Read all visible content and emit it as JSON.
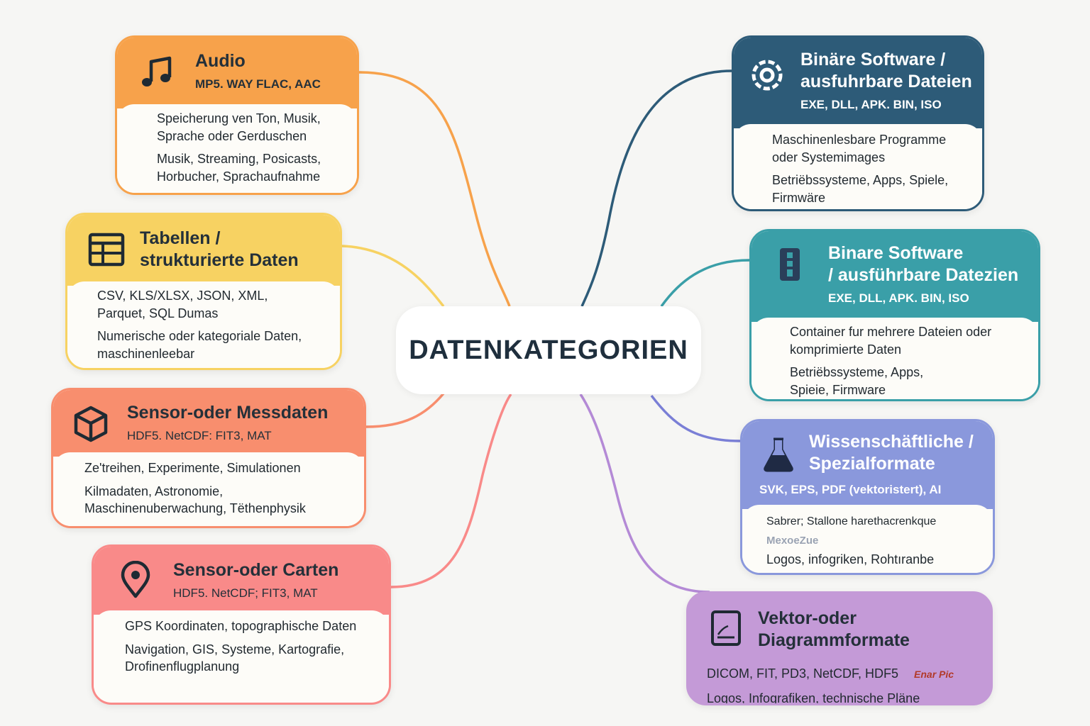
{
  "center": {
    "title": "DATENKATEGORIEN"
  },
  "nodes": {
    "audio": {
      "title": "Audio",
      "formats": "MP5. WAY FLAC, AAC",
      "description": "Speicherung ven Ton, Musik, Sprache oder Gerduschen",
      "examples": "Musik, Streaming, Posicasts, Horbucher, Sprachaufnahme",
      "color": "#f7a24b",
      "icon": "music-note-icon"
    },
    "tables": {
      "title": "Tabellen / strukturierte Daten",
      "title_line1": "Tabellen /",
      "title_line2": "strukturierte Daten",
      "formats": "CSV, KLS/XLSX, JSON, XML, Parquet, SQL Dumas",
      "description": "Numerische oder kategoriale Daten, maschinenleebar",
      "color": "#f7d262",
      "icon": "table-icon"
    },
    "sensor": {
      "title": "Sensor-oder Messdaten",
      "formats": "HDF5. NetCDF: FIT3, MAT",
      "description": "Ze'treihen, Experimente, Simulationen",
      "examples": "Kilmadaten, Astronomie, Maschinenuberwachung, Tëthenphysik",
      "color": "#f88e6e",
      "icon": "cube-icon"
    },
    "geo": {
      "title": "Sensor-oder Carten",
      "formats": "HDF5. NetCDF; FIT3, MAT",
      "description": "GPS Koordinaten, topographische Daten",
      "examples": "Navigation, GIS, Systeme, Kartografie, Drofinenflugplanung",
      "color": "#f98a89",
      "icon": "map-pin-icon"
    },
    "binary1": {
      "title": "Binäre Software / ausfuhrbare Dateien",
      "title_line1": "Binäre Software /",
      "title_line2": "ausfuhrbare Dateien",
      "formats": "EXE, DLL, APK. BIN, ISO",
      "description": "Maschinenlesbare Programme oder Systemimages",
      "examples": "Betriëbssysteme, Apps, Spiele, Firmwäre",
      "color": "#2d5b78",
      "icon": "gear-icon"
    },
    "binary2": {
      "title": "Binare Software / ausführbare Datezien",
      "title_line1": "Binare Software",
      "title_line2": "/ ausführbare Datezien",
      "formats": "EXE, DLL, APK. BIN, ISO",
      "description": "Container fur mehrere Dateien oder komprimierte Daten",
      "examples": "Betriëbssysteme, Apps, Spieie, Firmware",
      "color": "#3a9fa8",
      "icon": "archive-icon"
    },
    "science": {
      "title": "Wissenschäftliche / Spezialformate",
      "title_line1": "Wissenschäftliche /",
      "title_line2": "Spezialformate",
      "formats": "SVK, EPS, PDF (vektoristert), AI",
      "description": "Sabrer; Stallone harethacrenkque",
      "faded": "MexoeZue",
      "examples": "Logos, infogriken, Rohtıranbe",
      "color": "#8a98dc",
      "icon": "flask-icon"
    },
    "vector": {
      "title": "Vektor-oder Diagrammformate",
      "title_line1": "Vektor-oder",
      "title_line2": "Diagrammformate",
      "formats": "DICOM, FIT, PD3, NetCDF, HDF5",
      "logo_text": "Enar Pic",
      "examples": "Logos, Infografiken, technische Pläne",
      "color": "#c49ad7",
      "icon": "tablet-chart-icon"
    }
  },
  "connector_colors": {
    "audio": "#f7a24b",
    "tables": "#f7d262",
    "sensor": "#f88e6e",
    "geo": "#f98a89",
    "binary1": "#2d5b78",
    "binary2": "#3a9fa8",
    "science": "#7a7fd6",
    "vector": "#b48ad6"
  }
}
